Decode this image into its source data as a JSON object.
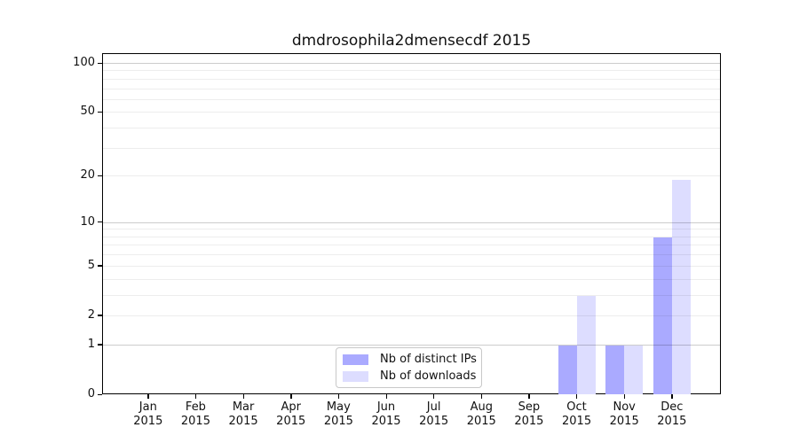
{
  "page": {
    "title": "dmdrosophila2dmensecdf 2015"
  },
  "chart_data": {
    "type": "bar",
    "title": "dmdrosophila2dmensecdf 2015",
    "categories": [
      "Jan 2015",
      "Feb 2015",
      "Mar 2015",
      "Apr 2015",
      "May 2015",
      "Jun 2015",
      "Jul 2015",
      "Aug 2015",
      "Sep 2015",
      "Oct 2015",
      "Nov 2015",
      "Dec 2015"
    ],
    "x_tick_months": [
      "Jan",
      "Feb",
      "Mar",
      "Apr",
      "May",
      "Jun",
      "Jul",
      "Aug",
      "Sep",
      "Oct",
      "Nov",
      "Dec"
    ],
    "x_tick_year": "2015",
    "series": [
      {
        "name": "Nb of distinct IPs",
        "color": "#aaaaff",
        "values": [
          0,
          0,
          0,
          0,
          0,
          0,
          0,
          0,
          0,
          1,
          1,
          8
        ]
      },
      {
        "name": "Nb of downloads",
        "color": "#ddddff",
        "values": [
          0,
          0,
          0,
          0,
          0,
          0,
          0,
          0,
          0,
          3,
          1,
          19
        ]
      }
    ],
    "y_axis": {
      "scale": "log1p",
      "ticks": [
        0,
        1,
        2,
        5,
        10,
        20,
        50,
        100
      ],
      "minor_ticks": [
        3,
        4,
        6,
        7,
        8,
        9,
        30,
        40,
        60,
        70,
        80,
        90
      ],
      "decade_ticks": [
        1,
        10,
        100
      ],
      "ylim": [
        0,
        100
      ]
    },
    "grid": true,
    "legend_position": "bottom-center",
    "colors": {
      "background": "#ffffff",
      "spine": "#000000"
    }
  },
  "legend": {
    "items": [
      {
        "label": "Nb of distinct IPs",
        "color": "#aaaaff"
      },
      {
        "label": "Nb of downloads",
        "color": "#ddddff"
      }
    ]
  }
}
